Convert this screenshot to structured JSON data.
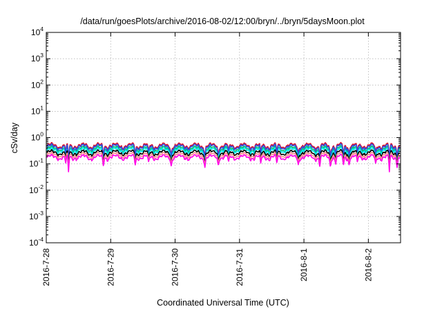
{
  "chart_data": {
    "type": "line",
    "title": "/data/run/goesPlots/archive/2016-08-02/12:00/bryn/../bryn/5daysMoon.plot",
    "xlabel": "Coordinated Universal Time (UTC)",
    "ylabel": "cSv/day",
    "yscale": "log",
    "ylim": [
      0.0001,
      10000
    ],
    "xlim": [
      "2016-07-28 00:00",
      "2016-08-02 12:00"
    ],
    "grid": true,
    "legend": "none",
    "x_ticks": [
      {
        "value": "2016-07-28",
        "label": "2016-7-28"
      },
      {
        "value": "2016-07-29",
        "label": "2016-7-29"
      },
      {
        "value": "2016-07-30",
        "label": "2016-7-30"
      },
      {
        "value": "2016-07-31",
        "label": "2016-7-31"
      },
      {
        "value": "2016-08-01",
        "label": "2016-8-1"
      },
      {
        "value": "2016-08-02",
        "label": "2016-8-2"
      }
    ],
    "y_ticks": [
      {
        "value": 0.0001,
        "base": "10",
        "exp": "-4"
      },
      {
        "value": 0.001,
        "base": "10",
        "exp": "-3"
      },
      {
        "value": 0.01,
        "base": "10",
        "exp": "-2"
      },
      {
        "value": 0.1,
        "base": "10",
        "exp": "-1"
      },
      {
        "value": 1,
        "base": "10",
        "exp": "0"
      },
      {
        "value": 10,
        "base": "10",
        "exp": "1"
      },
      {
        "value": 100,
        "base": "10",
        "exp": "2"
      },
      {
        "value": 1000,
        "base": "10",
        "exp": "3"
      },
      {
        "value": 10000,
        "base": "10",
        "exp": "4"
      }
    ],
    "series": [
      {
        "color": "#e0102a",
        "base": 0.5
      },
      {
        "color": "#00c070",
        "base": 0.38
      },
      {
        "color": "#00e8f0",
        "base": 0.33
      },
      {
        "color": "#3050e0",
        "base": 0.45
      },
      {
        "color": "#000000",
        "base": 0.27
      },
      {
        "color": "#ff9090",
        "base": 0.22
      },
      {
        "color": "#ff00e8",
        "base": 0.18
      }
    ],
    "dips": [
      {
        "x": "2016-07-28 07:00",
        "factor": 0.55
      },
      {
        "x": "2016-07-28 08:00",
        "factor": 0.3,
        "magenta_min": 0.05
      },
      {
        "x": "2016-07-28 21:00",
        "factor": 0.5
      },
      {
        "x": "2016-07-29 09:00",
        "factor": 0.5
      },
      {
        "x": "2016-07-29 14:00",
        "factor": 0.55
      },
      {
        "x": "2016-07-29 22:30",
        "factor": 0.5
      },
      {
        "x": "2016-07-30 11:00",
        "factor": 0.5
      },
      {
        "x": "2016-07-30 16:00",
        "factor": 0.55
      },
      {
        "x": "2016-07-30 20:00",
        "factor": 0.55
      },
      {
        "x": "2016-07-31 08:00",
        "factor": 0.5
      },
      {
        "x": "2016-07-31 14:00",
        "factor": 0.55
      },
      {
        "x": "2016-07-31 22:00",
        "factor": 0.55
      },
      {
        "x": "2016-08-01 06:00",
        "factor": 0.5
      },
      {
        "x": "2016-08-01 10:00",
        "factor": 0.5
      },
      {
        "x": "2016-08-01 12:00",
        "factor": 0.55
      },
      {
        "x": "2016-08-01 15:00",
        "factor": 0.5
      },
      {
        "x": "2016-08-01 17:00",
        "factor": 0.55
      },
      {
        "x": "2016-08-01 20:00",
        "factor": 0.55
      },
      {
        "x": "2016-08-02 03:00",
        "factor": 0.5
      },
      {
        "x": "2016-08-02 08:00",
        "factor": 0.3,
        "magenta_min": 0.05
      },
      {
        "x": "2016-08-02 11:00",
        "factor": 0.5
      }
    ]
  }
}
